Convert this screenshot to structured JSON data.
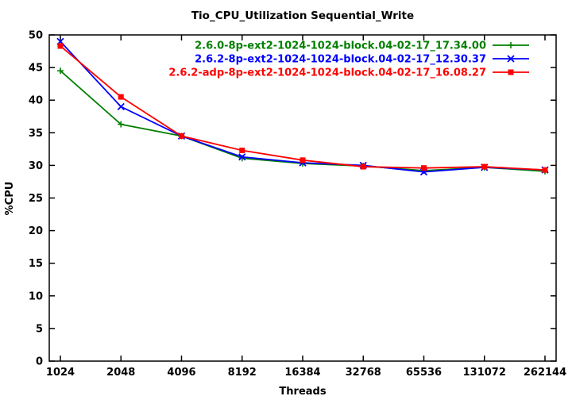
{
  "chart_data": {
    "type": "line",
    "title": "Tio_CPU_Utilization Sequential_Write",
    "xlabel": "Threads",
    "ylabel": "%CPU",
    "x": [
      1024,
      2048,
      4096,
      8192,
      16384,
      32768,
      65536,
      131072,
      262144
    ],
    "x_tick_labels": [
      "1024",
      "2048",
      "4096",
      "8192",
      "16384",
      "32768",
      "65536",
      "131072",
      "262144"
    ],
    "x_scale": "log2",
    "ylim": [
      0,
      50
    ],
    "y_tick_step": 5,
    "grid": false,
    "legend_position": "top-right-inside",
    "axis_color": "#000000",
    "background_color": "#ffffff",
    "series": [
      {
        "name": "2.6.0-8p-ext2-1024-1024-block.04-02-17_17.34.00",
        "color": "#008000",
        "marker": "plus",
        "values": [
          44.5,
          36.3,
          34.5,
          31.1,
          30.3,
          29.9,
          29.2,
          29.7,
          29.1
        ]
      },
      {
        "name": "2.6.2-8p-ext2-1024-1024-block.04-02-17_12.30.37",
        "color": "#0000ff",
        "marker": "x",
        "values": [
          49.0,
          39.0,
          34.5,
          31.3,
          30.4,
          30.0,
          29.0,
          29.7,
          29.3
        ]
      },
      {
        "name": "2.6.2-adp-8p-ext2-1024-1024-block.04-02-17_16.08.27",
        "color": "#ff0000",
        "marker": "square",
        "values": [
          48.3,
          40.5,
          34.5,
          32.3,
          30.8,
          29.8,
          29.6,
          29.8,
          29.3
        ]
      }
    ]
  }
}
